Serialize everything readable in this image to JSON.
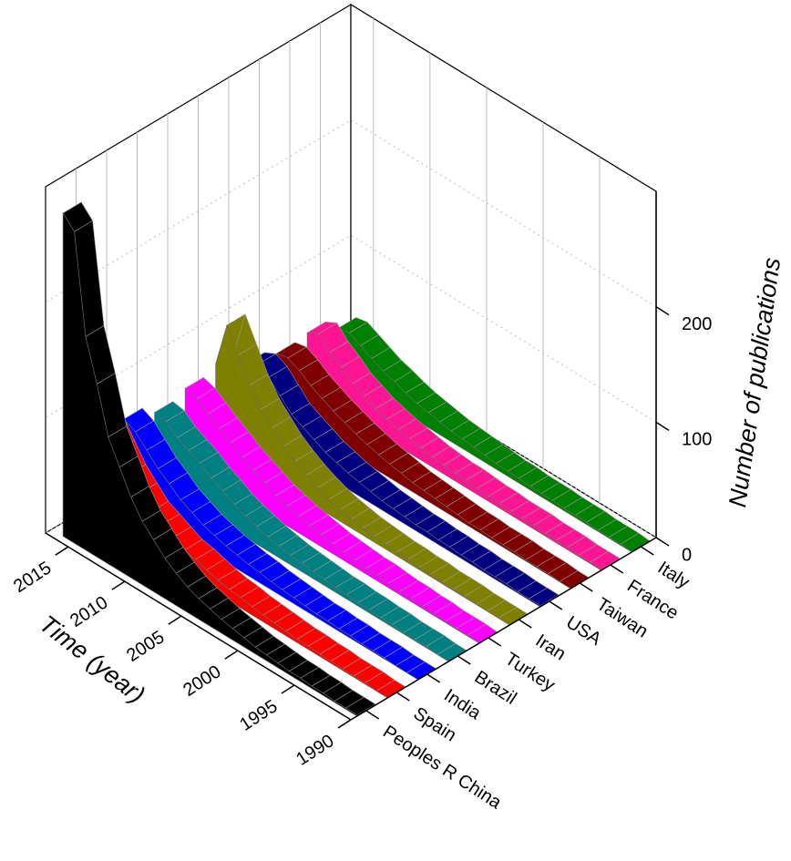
{
  "chart_data": {
    "type": "waterfall3d",
    "xlabel": "Time (year)",
    "zlabel": "Number of publications",
    "x": [
      1990,
      1991,
      1992,
      1993,
      1994,
      1995,
      1996,
      1997,
      1998,
      1999,
      2000,
      2001,
      2002,
      2003,
      2004,
      2005,
      2006,
      2007,
      2008,
      2009,
      2010,
      2011,
      2012,
      2013,
      2014,
      2015,
      2016
    ],
    "xlim": [
      1990,
      2017
    ],
    "xticks": [
      1990,
      1995,
      2000,
      2005,
      2010,
      2015
    ],
    "zlim": [
      0,
      300
    ],
    "zticks": [
      0,
      100,
      200
    ],
    "grid": true,
    "series": [
      {
        "name": "Peoples R China",
        "color": "#000000",
        "values": [
          1,
          1,
          1,
          2,
          2,
          3,
          3,
          4,
          5,
          6,
          8,
          10,
          12,
          15,
          18,
          22,
          28,
          35,
          45,
          55,
          70,
          90,
          110,
          150,
          185,
          270,
          280
        ]
      },
      {
        "name": "Spain",
        "color": "#ff0000",
        "values": [
          0,
          0,
          1,
          1,
          1,
          2,
          2,
          3,
          3,
          4,
          5,
          6,
          7,
          9,
          10,
          12,
          15,
          18,
          20,
          25,
          30,
          35,
          45,
          55,
          70,
          85,
          75
        ]
      },
      {
        "name": "India",
        "color": "#0000ff",
        "values": [
          0,
          0,
          0,
          1,
          1,
          1,
          2,
          2,
          3,
          3,
          4,
          5,
          6,
          7,
          9,
          10,
          12,
          14,
          17,
          20,
          25,
          30,
          38,
          45,
          55,
          65,
          70
        ]
      },
      {
        "name": "Brazil",
        "color": "#008080",
        "values": [
          0,
          0,
          1,
          1,
          1,
          2,
          2,
          3,
          3,
          4,
          4,
          5,
          6,
          7,
          8,
          10,
          12,
          15,
          18,
          22,
          28,
          33,
          40,
          45,
          50,
          58,
          60
        ]
      },
      {
        "name": "Turkey",
        "color": "#ff00ff",
        "values": [
          0,
          1,
          1,
          1,
          2,
          2,
          3,
          3,
          4,
          5,
          5,
          6,
          7,
          8,
          10,
          12,
          14,
          17,
          20,
          25,
          30,
          35,
          42,
          48,
          55,
          62,
          65
        ]
      },
      {
        "name": "Iran",
        "color": "#808000",
        "values": [
          0,
          0,
          0,
          0,
          1,
          1,
          1,
          2,
          2,
          3,
          3,
          4,
          5,
          6,
          8,
          10,
          13,
          17,
          22,
          28,
          35,
          45,
          55,
          70,
          90,
          110,
          70
        ]
      },
      {
        "name": "USA",
        "color": "#000080",
        "values": [
          1,
          1,
          1,
          2,
          2,
          2,
          3,
          3,
          4,
          4,
          5,
          5,
          6,
          7,
          8,
          10,
          12,
          14,
          17,
          20,
          25,
          30,
          35,
          45,
          55,
          60,
          55
        ]
      },
      {
        "name": "Taiwan",
        "color": "#800000",
        "values": [
          0,
          0,
          1,
          1,
          1,
          2,
          2,
          2,
          3,
          3,
          4,
          5,
          6,
          7,
          8,
          10,
          12,
          14,
          17,
          20,
          24,
          28,
          33,
          38,
          45,
          50,
          48
        ]
      },
      {
        "name": "France",
        "color": "#ff1493",
        "values": [
          1,
          1,
          1,
          2,
          2,
          2,
          3,
          3,
          3,
          4,
          4,
          5,
          6,
          6,
          7,
          8,
          10,
          12,
          14,
          17,
          20,
          25,
          30,
          38,
          45,
          55,
          50
        ]
      },
      {
        "name": "Italy",
        "color": "#008000",
        "values": [
          0,
          1,
          1,
          1,
          2,
          2,
          2,
          3,
          3,
          3,
          4,
          4,
          5,
          6,
          7,
          8,
          9,
          11,
          13,
          15,
          18,
          22,
          25,
          30,
          35,
          40,
          38
        ]
      }
    ]
  }
}
